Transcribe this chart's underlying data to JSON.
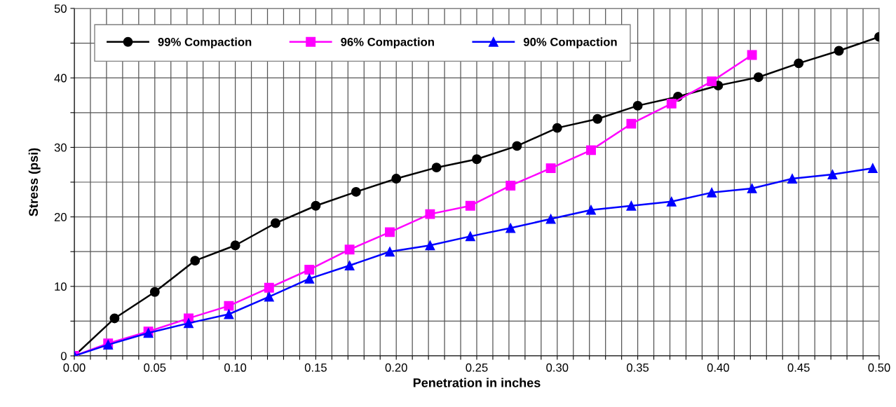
{
  "chart_data": {
    "type": "line",
    "xlabel": "Penetration in inches",
    "ylabel": "Stress (psi)",
    "xlim": [
      0,
      0.5
    ],
    "ylim": [
      0,
      50
    ],
    "xticks": [
      {
        "value": 0,
        "label": "0.00"
      },
      {
        "value": 0.01,
        "label": null
      },
      {
        "value": 0.02,
        "label": null
      },
      {
        "value": 0.03,
        "label": null
      },
      {
        "value": 0.04,
        "label": null
      },
      {
        "value": 0.05,
        "label": "0.05"
      },
      {
        "value": 0.06,
        "label": null
      },
      {
        "value": 0.07,
        "label": null
      },
      {
        "value": 0.08,
        "label": null
      },
      {
        "value": 0.09,
        "label": null
      },
      {
        "value": 0.1,
        "label": "0.10"
      },
      {
        "value": 0.11,
        "label": null
      },
      {
        "value": 0.12,
        "label": null
      },
      {
        "value": 0.13,
        "label": null
      },
      {
        "value": 0.14,
        "label": null
      },
      {
        "value": 0.15,
        "label": "0.15"
      },
      {
        "value": 0.16,
        "label": null
      },
      {
        "value": 0.17,
        "label": null
      },
      {
        "value": 0.18,
        "label": null
      },
      {
        "value": 0.19,
        "label": null
      },
      {
        "value": 0.2,
        "label": "0.20"
      },
      {
        "value": 0.21,
        "label": null
      },
      {
        "value": 0.22,
        "label": null
      },
      {
        "value": 0.23,
        "label": null
      },
      {
        "value": 0.24,
        "label": null
      },
      {
        "value": 0.25,
        "label": "0.25"
      },
      {
        "value": 0.26,
        "label": null
      },
      {
        "value": 0.27,
        "label": null
      },
      {
        "value": 0.28,
        "label": null
      },
      {
        "value": 0.29,
        "label": null
      },
      {
        "value": 0.3,
        "label": "0.30"
      },
      {
        "value": 0.31,
        "label": null
      },
      {
        "value": 0.32,
        "label": null
      },
      {
        "value": 0.33,
        "label": null
      },
      {
        "value": 0.34,
        "label": null
      },
      {
        "value": 0.35,
        "label": "0.35"
      },
      {
        "value": 0.36,
        "label": null
      },
      {
        "value": 0.37,
        "label": null
      },
      {
        "value": 0.38,
        "label": null
      },
      {
        "value": 0.39,
        "label": null
      },
      {
        "value": 0.4,
        "label": "0.40"
      },
      {
        "value": 0.41,
        "label": null
      },
      {
        "value": 0.42,
        "label": null
      },
      {
        "value": 0.43,
        "label": null
      },
      {
        "value": 0.44,
        "label": null
      },
      {
        "value": 0.45,
        "label": "0.45"
      },
      {
        "value": 0.46,
        "label": null
      },
      {
        "value": 0.47,
        "label": null
      },
      {
        "value": 0.48,
        "label": null
      },
      {
        "value": 0.49,
        "label": null
      },
      {
        "value": 0.5,
        "label": "0.50"
      }
    ],
    "yticks": [
      0,
      {
        "value": 5,
        "label": null
      },
      10,
      {
        "value": 15,
        "label": null
      },
      20,
      {
        "value": 25,
        "label": null
      },
      30,
      {
        "value": 35,
        "label": null
      },
      40,
      {
        "value": 45,
        "label": null
      },
      50
    ],
    "grid": true,
    "legend": "top",
    "line_style": "solid",
    "series": [
      {
        "name": "99% Compaction",
        "color": "#000000",
        "marker": "circle",
        "x": [
          0,
          0.025,
          0.05,
          0.075,
          0.1,
          0.125,
          0.15,
          0.175,
          0.2,
          0.225,
          0.25,
          0.275,
          0.3,
          0.325,
          0.35,
          0.375,
          0.4,
          0.425,
          0.45,
          0.475,
          0.5
        ],
        "values": [
          0,
          5.4,
          9.2,
          13.7,
          15.9,
          19.1,
          21.6,
          23.6,
          25.5,
          27.1,
          28.3,
          30.2,
          32.8,
          34.1,
          36.0,
          37.3,
          38.9,
          40.1,
          42.1,
          43.9,
          45.9
        ]
      },
      {
        "name": "96% Compaction",
        "color": "#ff00ff",
        "marker": "square",
        "x": [
          0,
          0.021,
          0.046,
          0.071,
          0.096,
          0.121,
          0.146,
          0.171,
          0.196,
          0.221,
          0.246,
          0.271,
          0.296,
          0.321,
          0.346,
          0.371,
          0.396,
          0.421
        ],
        "values": [
          0,
          1.8,
          3.5,
          5.4,
          7.2,
          9.8,
          12.4,
          15.3,
          17.8,
          20.4,
          21.6,
          24.5,
          27.0,
          29.6,
          33.4,
          36.3,
          39.5,
          43.3
        ]
      },
      {
        "name": "90% Compaction",
        "color": "#0000ff",
        "marker": "triangle",
        "x": [
          0,
          0.021,
          0.046,
          0.071,
          0.096,
          0.121,
          0.146,
          0.171,
          0.196,
          0.221,
          0.246,
          0.271,
          0.296,
          0.321,
          0.346,
          0.371,
          0.396,
          0.421,
          0.446,
          0.471,
          0.496
        ],
        "values": [
          0,
          1.6,
          3.3,
          4.7,
          6.0,
          8.5,
          11.1,
          13.0,
          15.0,
          15.9,
          17.2,
          18.4,
          19.7,
          21.0,
          21.6,
          22.2,
          23.5,
          24.1,
          25.5,
          26.1,
          27.0
        ]
      }
    ]
  }
}
